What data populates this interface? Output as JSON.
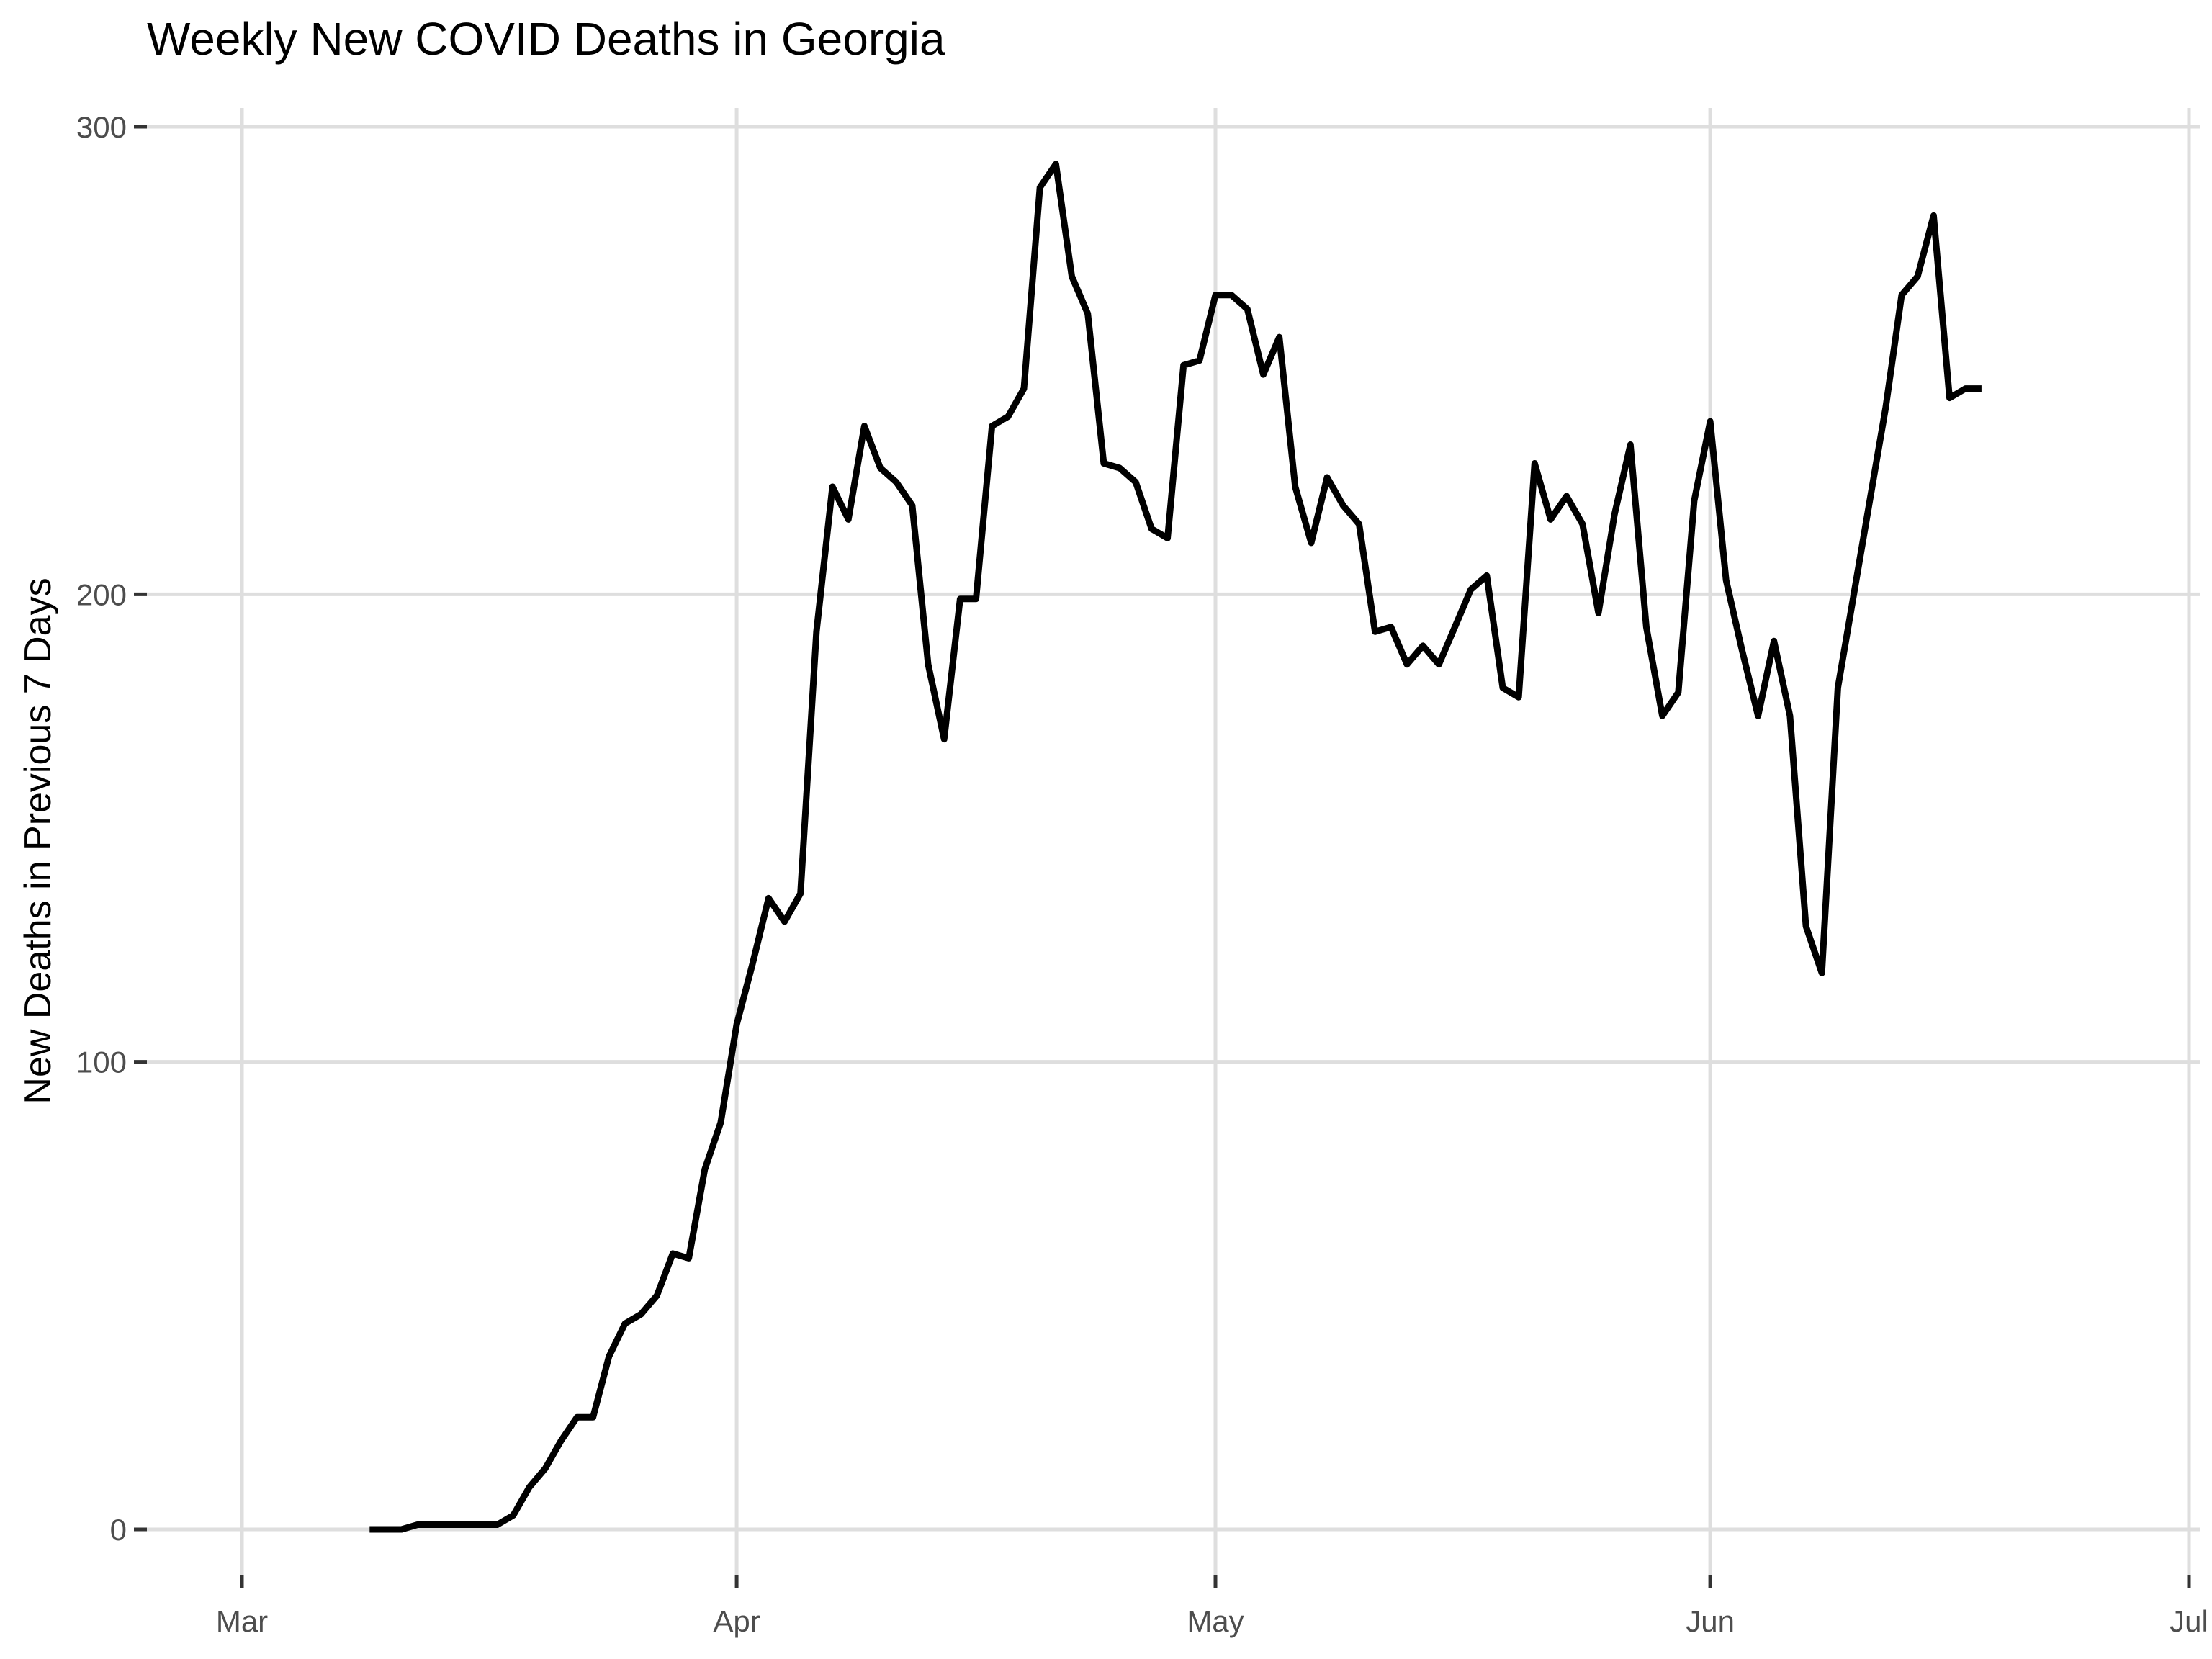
{
  "chart_data": {
    "type": "line",
    "title": "Weekly New COVID Deaths in Georgia",
    "xlabel": "",
    "ylabel": "New Deaths in Previous 7 Days",
    "ylim": [
      -10,
      305
    ],
    "xlim": [
      "2020-02-26",
      "2020-07-01"
    ],
    "grid": true,
    "legend": "none",
    "line_color": "#000000",
    "grid_color": "#dedede",
    "x_ticks": [
      {
        "date": "2020-03-01",
        "label": "Mar"
      },
      {
        "date": "2020-04-01",
        "label": "Apr"
      },
      {
        "date": "2020-05-01",
        "label": "May"
      },
      {
        "date": "2020-06-01",
        "label": "Jun"
      },
      {
        "date": "2020-07-01",
        "label": "Jul"
      }
    ],
    "y_ticks": [
      {
        "value": 0,
        "label": "0"
      },
      {
        "value": 100,
        "label": "100"
      },
      {
        "value": 200,
        "label": "200"
      },
      {
        "value": 300,
        "label": "300"
      }
    ],
    "series": [
      {
        "x": [
          "2020-03-09",
          "2020-03-10",
          "2020-03-11",
          "2020-03-12",
          "2020-03-13",
          "2020-03-14",
          "2020-03-15",
          "2020-03-16",
          "2020-03-17",
          "2020-03-18",
          "2020-03-19",
          "2020-03-20",
          "2020-03-21",
          "2020-03-22",
          "2020-03-23",
          "2020-03-24",
          "2020-03-25",
          "2020-03-26",
          "2020-03-27",
          "2020-03-28",
          "2020-03-29",
          "2020-03-30",
          "2020-03-31",
          "2020-04-01",
          "2020-04-02",
          "2020-04-03",
          "2020-04-04",
          "2020-04-05",
          "2020-04-06",
          "2020-04-07",
          "2020-04-08",
          "2020-04-09",
          "2020-04-10",
          "2020-04-11",
          "2020-04-12",
          "2020-04-13",
          "2020-04-14",
          "2020-04-15",
          "2020-04-16",
          "2020-04-17",
          "2020-04-18",
          "2020-04-19",
          "2020-04-20",
          "2020-04-21",
          "2020-04-22",
          "2020-04-23",
          "2020-04-24",
          "2020-04-25",
          "2020-04-26",
          "2020-04-27",
          "2020-04-28",
          "2020-04-29",
          "2020-04-30",
          "2020-05-01",
          "2020-05-02",
          "2020-05-03",
          "2020-05-04",
          "2020-05-05",
          "2020-05-06",
          "2020-05-07",
          "2020-05-08",
          "2020-05-09",
          "2020-05-10",
          "2020-05-11",
          "2020-05-12",
          "2020-05-13",
          "2020-05-14",
          "2020-05-15",
          "2020-05-16",
          "2020-05-17",
          "2020-05-18",
          "2020-05-19",
          "2020-05-20",
          "2020-05-21",
          "2020-05-22",
          "2020-05-23",
          "2020-05-24",
          "2020-05-25",
          "2020-05-26",
          "2020-05-27",
          "2020-05-28",
          "2020-05-29",
          "2020-05-30",
          "2020-05-31",
          "2020-06-01",
          "2020-06-02",
          "2020-06-03",
          "2020-06-04",
          "2020-06-05",
          "2020-06-06",
          "2020-06-07",
          "2020-06-08",
          "2020-06-09",
          "2020-06-10",
          "2020-06-11",
          "2020-06-12",
          "2020-06-13",
          "2020-06-14",
          "2020-06-15",
          "2020-06-16",
          "2020-06-17",
          "2020-06-18"
        ],
        "y": [
          0,
          0,
          0,
          1,
          1,
          1,
          1,
          1,
          1,
          3,
          9,
          13,
          19,
          24,
          24,
          37,
          44,
          46,
          50,
          59,
          58,
          77,
          87,
          108,
          121,
          135,
          130,
          136,
          192,
          223,
          216,
          236,
          227,
          224,
          219,
          185,
          169,
          199,
          199,
          236,
          238,
          244,
          287,
          292,
          268,
          260,
          228,
          227,
          224,
          214,
          212,
          249,
          250,
          264,
          264,
          261,
          247,
          255,
          223,
          211,
          225,
          219,
          215,
          192,
          193,
          185,
          189,
          185,
          193,
          201,
          204,
          180,
          178,
          228,
          216,
          221,
          215,
          196,
          217,
          232,
          193,
          174,
          179,
          220,
          237,
          203,
          188,
          174,
          190,
          174,
          129,
          119,
          180,
          200,
          220,
          240,
          264,
          268,
          281,
          242,
          244,
          244
        ]
      }
    ]
  }
}
